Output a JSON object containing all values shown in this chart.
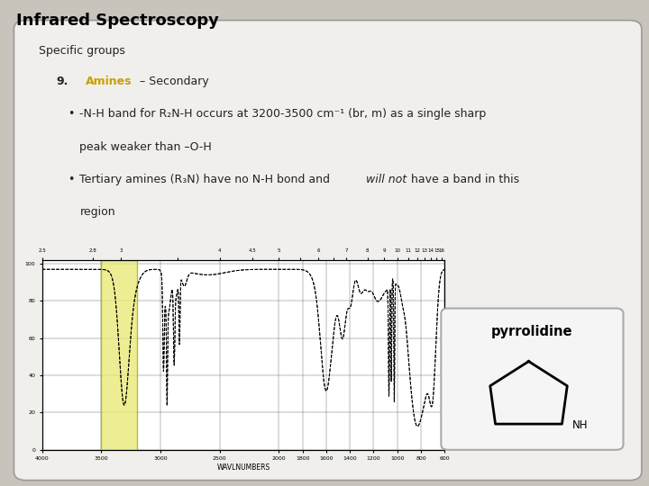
{
  "title": "Infrared Spectroscopy",
  "title_color": "#000000",
  "bg_color": "#c8c4bc",
  "card_bg": "#f0efec",
  "section_title": "Specific groups",
  "item_number": "9.",
  "item_label": "Amines",
  "item_label_color": "#c8a000",
  "item_subtitle": " – Secondary",
  "line1": "-N-H band for R",
  "line1b": "N-H occurs at 3200-3500 cm",
  "line2": "peak weaker than –O-H",
  "line3a": "Tertiary amines (R",
  "line3b": "N) have no N-H bond and ",
  "line3_italic": "will not",
  "line3c": " have a band in this",
  "line4": "region",
  "compound_name": "pyrrolidine",
  "highlight_color": "#e8e870",
  "highlight_alpha": 0.75,
  "xlabel": "WAVLNUMBERS"
}
